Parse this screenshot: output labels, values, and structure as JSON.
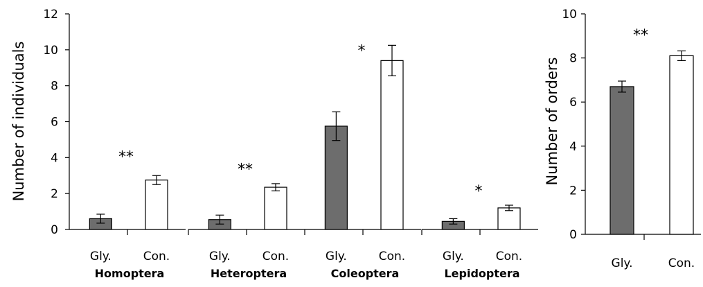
{
  "chart_data": [
    {
      "type": "bar",
      "ylabel": "Number of individuals",
      "ylim": [
        0,
        12
      ],
      "yticks": [
        0,
        2,
        4,
        6,
        8,
        10,
        12
      ],
      "bar_colors": {
        "Gly.": "#6d6d6d",
        "Con.": "#ffffff"
      },
      "groups": [
        {
          "name": "Homoptera",
          "significance": "**",
          "bars": [
            {
              "label": "Gly.",
              "value": 0.6,
              "error": 0.25
            },
            {
              "label": "Con.",
              "value": 2.75,
              "error": 0.25
            }
          ]
        },
        {
          "name": "Heteroptera",
          "significance": "**",
          "bars": [
            {
              "label": "Gly.",
              "value": 0.55,
              "error": 0.25
            },
            {
              "label": "Con.",
              "value": 2.35,
              "error": 0.2
            }
          ]
        },
        {
          "name": "Coleoptera",
          "significance": "*",
          "bars": [
            {
              "label": "Gly.",
              "value": 5.75,
              "error": 0.8
            },
            {
              "label": "Con.",
              "value": 9.4,
              "error": 0.85
            }
          ]
        },
        {
          "name": "Lepidoptera",
          "significance": "*",
          "bars": [
            {
              "label": "Gly.",
              "value": 0.45,
              "error": 0.15
            },
            {
              "label": "Con.",
              "value": 1.2,
              "error": 0.15
            }
          ]
        }
      ]
    },
    {
      "type": "bar",
      "ylabel": "Number  of orders",
      "ylim": [
        0,
        10
      ],
      "yticks": [
        0,
        2,
        4,
        6,
        8,
        10
      ],
      "bar_colors": {
        "Gly.": "#6d6d6d",
        "Con.": "#ffffff"
      },
      "significance": "**",
      "bars": [
        {
          "label": "Gly.",
          "value": 6.7,
          "error": 0.25
        },
        {
          "label": "Con.",
          "value": 8.1,
          "error": 0.22
        }
      ]
    }
  ]
}
